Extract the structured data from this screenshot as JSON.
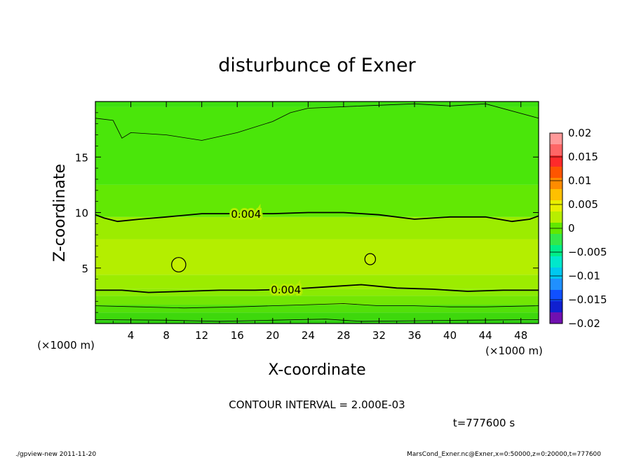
{
  "chart_data": {
    "type": "heatmap",
    "title": "disturbunce of Exner",
    "xlabel": "X-coordinate",
    "ylabel": "Z-coordinate",
    "x_unit_label": "(×1000 m)",
    "y_unit_label": "(×1000 m)",
    "xlim": [
      0,
      50
    ],
    "ylim": [
      0,
      20
    ],
    "x_ticks": [
      4,
      8,
      12,
      16,
      20,
      24,
      28,
      32,
      36,
      40,
      44,
      48
    ],
    "y_ticks": [
      5,
      10,
      15
    ],
    "colorbar": {
      "ticks": [
        "0.02",
        "0.015",
        "0.01",
        "0.005",
        "0",
        "−0.005",
        "−0.01",
        "−0.015",
        "−0.02"
      ],
      "levels": [
        0.02,
        0.0175,
        0.015,
        0.0125,
        0.01,
        0.0075,
        0.005,
        0.0025,
        0,
        -0.0025,
        -0.005,
        -0.0075,
        -0.01,
        -0.0125,
        -0.015,
        -0.0175,
        -0.02
      ],
      "colors": [
        "#ff9999",
        "#ff6666",
        "#ff2a2a",
        "#ff5500",
        "#ff8c00",
        "#ffc000",
        "#e8ef00",
        "#b8ee00",
        "#62e800",
        "#33e84a",
        "#00ee88",
        "#00e8cc",
        "#00c8f0",
        "#2090ff",
        "#1050ff",
        "#1020d0",
        "#7010b0"
      ]
    },
    "bands": [
      {
        "bottom": 0.0,
        "top": 0.3,
        "value": 0.0,
        "color": "#2ecf10"
      },
      {
        "bottom": 0.3,
        "top": 1.0,
        "value": 0.001,
        "color": "#3ed80c"
      },
      {
        "bottom": 1.0,
        "top": 1.7,
        "value": 0.002,
        "color": "#52e008"
      },
      {
        "bottom": 1.7,
        "top": 2.5,
        "value": 0.003,
        "color": "#72e604"
      },
      {
        "bottom": 2.5,
        "top": 3.1,
        "value": 0.0035,
        "color": "#8aea02"
      },
      {
        "bottom": 3.1,
        "top": 4.4,
        "value": 0.0045,
        "color": "#9cec00"
      },
      {
        "bottom": 4.4,
        "top": 7.6,
        "value": 0.005,
        "color": "#b4ee00"
      },
      {
        "bottom": 7.6,
        "top": 9.6,
        "value": 0.0045,
        "color": "#9cec00"
      },
      {
        "bottom": 9.6,
        "top": 12.5,
        "value": 0.003,
        "color": "#62e804"
      },
      {
        "bottom": 12.5,
        "top": 19.5,
        "value": 0.0015,
        "color": "#4ae60a"
      },
      {
        "bottom": 19.5,
        "top": 20.0,
        "value": 0.001,
        "color": "#3ee010"
      }
    ],
    "contours": [
      {
        "level": 0.004,
        "label": "0.004",
        "label_x": 21.5,
        "points": [
          [
            0,
            3.0
          ],
          [
            3,
            3.0
          ],
          [
            6,
            2.8
          ],
          [
            10,
            2.9
          ],
          [
            14,
            3.0
          ],
          [
            18,
            3.0
          ],
          [
            22,
            3.1
          ],
          [
            26,
            3.3
          ],
          [
            30,
            3.5
          ],
          [
            34,
            3.2
          ],
          [
            38,
            3.1
          ],
          [
            42,
            2.9
          ],
          [
            46,
            3.0
          ],
          [
            50,
            3.0
          ]
        ]
      },
      {
        "level": 0.004,
        "label": "0.004",
        "label_x": 17.0,
        "points": [
          [
            0,
            9.8
          ],
          [
            1,
            9.5
          ],
          [
            2.5,
            9.2
          ],
          [
            5,
            9.4
          ],
          [
            8,
            9.6
          ],
          [
            12,
            9.9
          ],
          [
            16,
            9.9
          ],
          [
            20,
            9.9
          ],
          [
            24,
            10.0
          ],
          [
            28,
            10.0
          ],
          [
            32,
            9.8
          ],
          [
            36,
            9.4
          ],
          [
            40,
            9.6
          ],
          [
            44,
            9.6
          ],
          [
            47,
            9.2
          ],
          [
            49,
            9.4
          ],
          [
            50,
            9.7
          ]
        ]
      },
      {
        "level": 0.002,
        "label": "",
        "points": [
          [
            0,
            1.6
          ],
          [
            5,
            1.5
          ],
          [
            10,
            1.4
          ],
          [
            16,
            1.5
          ],
          [
            20,
            1.6
          ],
          [
            24,
            1.7
          ],
          [
            28,
            1.8
          ],
          [
            32,
            1.6
          ],
          [
            36,
            1.6
          ],
          [
            40,
            1.5
          ],
          [
            44,
            1.5
          ],
          [
            50,
            1.6
          ]
        ]
      },
      {
        "level": 0.001,
        "label": "",
        "points": [
          [
            0,
            0.35
          ],
          [
            8,
            0.3
          ],
          [
            14,
            0.2
          ],
          [
            20,
            0.3
          ],
          [
            26,
            0.4
          ],
          [
            30,
            0.2
          ],
          [
            36,
            0.25
          ],
          [
            42,
            0.3
          ],
          [
            50,
            0.35
          ]
        ]
      },
      {
        "level": 0.002,
        "label": "",
        "points": [
          [
            0,
            18.5
          ],
          [
            2,
            18.3
          ],
          [
            3,
            16.7
          ],
          [
            4,
            17.2
          ],
          [
            8,
            17.0
          ],
          [
            12,
            16.5
          ],
          [
            16,
            17.2
          ],
          [
            20,
            18.2
          ],
          [
            22,
            19.0
          ],
          [
            24,
            19.4
          ],
          [
            30,
            19.6
          ],
          [
            36,
            19.8
          ],
          [
            40,
            19.6
          ],
          [
            44,
            19.8
          ],
          [
            50,
            18.5
          ]
        ]
      }
    ],
    "closed_contours": [
      {
        "level": 0.005,
        "center": [
          9.4,
          5.3
        ],
        "rx": 0.8,
        "ry": 0.65
      },
      {
        "level": 0.005,
        "center": [
          31.0,
          5.8
        ],
        "rx": 0.6,
        "ry": 0.5
      }
    ]
  },
  "annotations": {
    "contour_interval": "CONTOUR INTERVAL = 2.000E-03",
    "time": "t=777600 s",
    "footer_left": "./gpview-new   2011-11-20",
    "footer_right": "MarsCond_Exner.nc@Exner,x=0:50000,z=0:20000,t=777600"
  }
}
